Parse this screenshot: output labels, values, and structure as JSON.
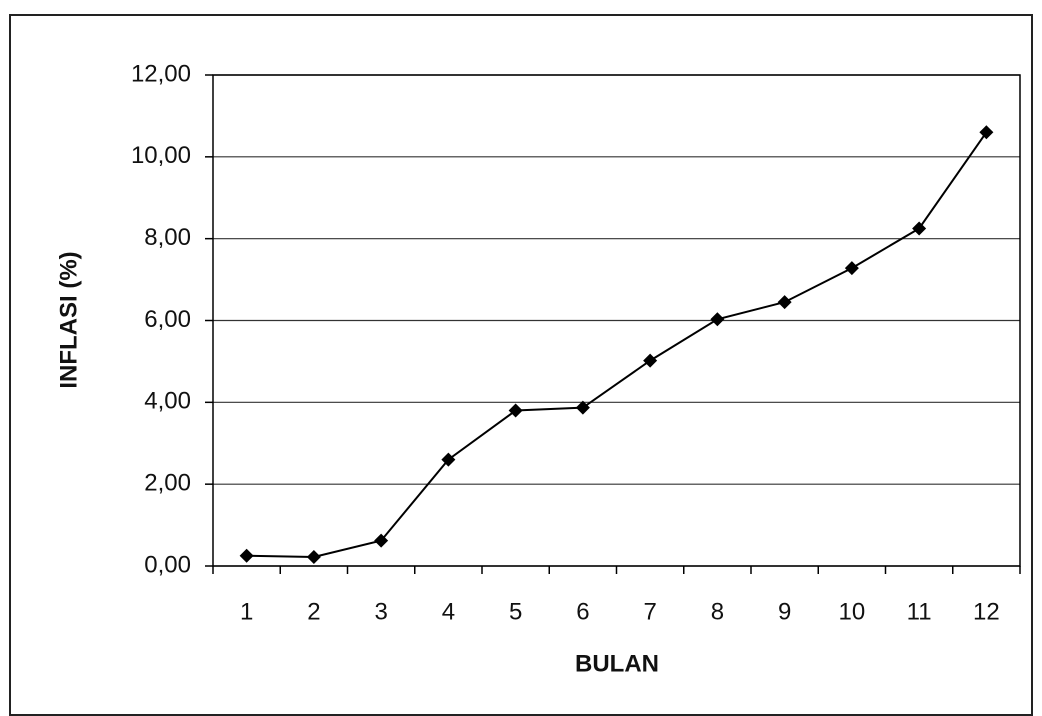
{
  "chart_data": {
    "type": "line",
    "x_label": "BULAN",
    "y_label": "INFLASI (%)",
    "categories": [
      "1",
      "2",
      "3",
      "4",
      "5",
      "6",
      "7",
      "8",
      "9",
      "10",
      "11",
      "12"
    ],
    "series": [
      {
        "name": "INFLASI",
        "color": "#000000",
        "values": [
          0.25,
          0.22,
          0.62,
          2.6,
          3.8,
          3.87,
          5.02,
          6.03,
          6.45,
          7.28,
          8.25,
          10.6
        ]
      }
    ],
    "ylim": [
      0,
      12
    ],
    "yticks": [
      {
        "value": 0,
        "label": "0,00"
      },
      {
        "value": 2,
        "label": "2,00"
      },
      {
        "value": 4,
        "label": "4,00"
      },
      {
        "value": 6,
        "label": "6,00"
      },
      {
        "value": 8,
        "label": "8,00"
      },
      {
        "value": 10,
        "label": "10,00"
      },
      {
        "value": 12,
        "label": "12,00"
      }
    ],
    "grid": true
  }
}
